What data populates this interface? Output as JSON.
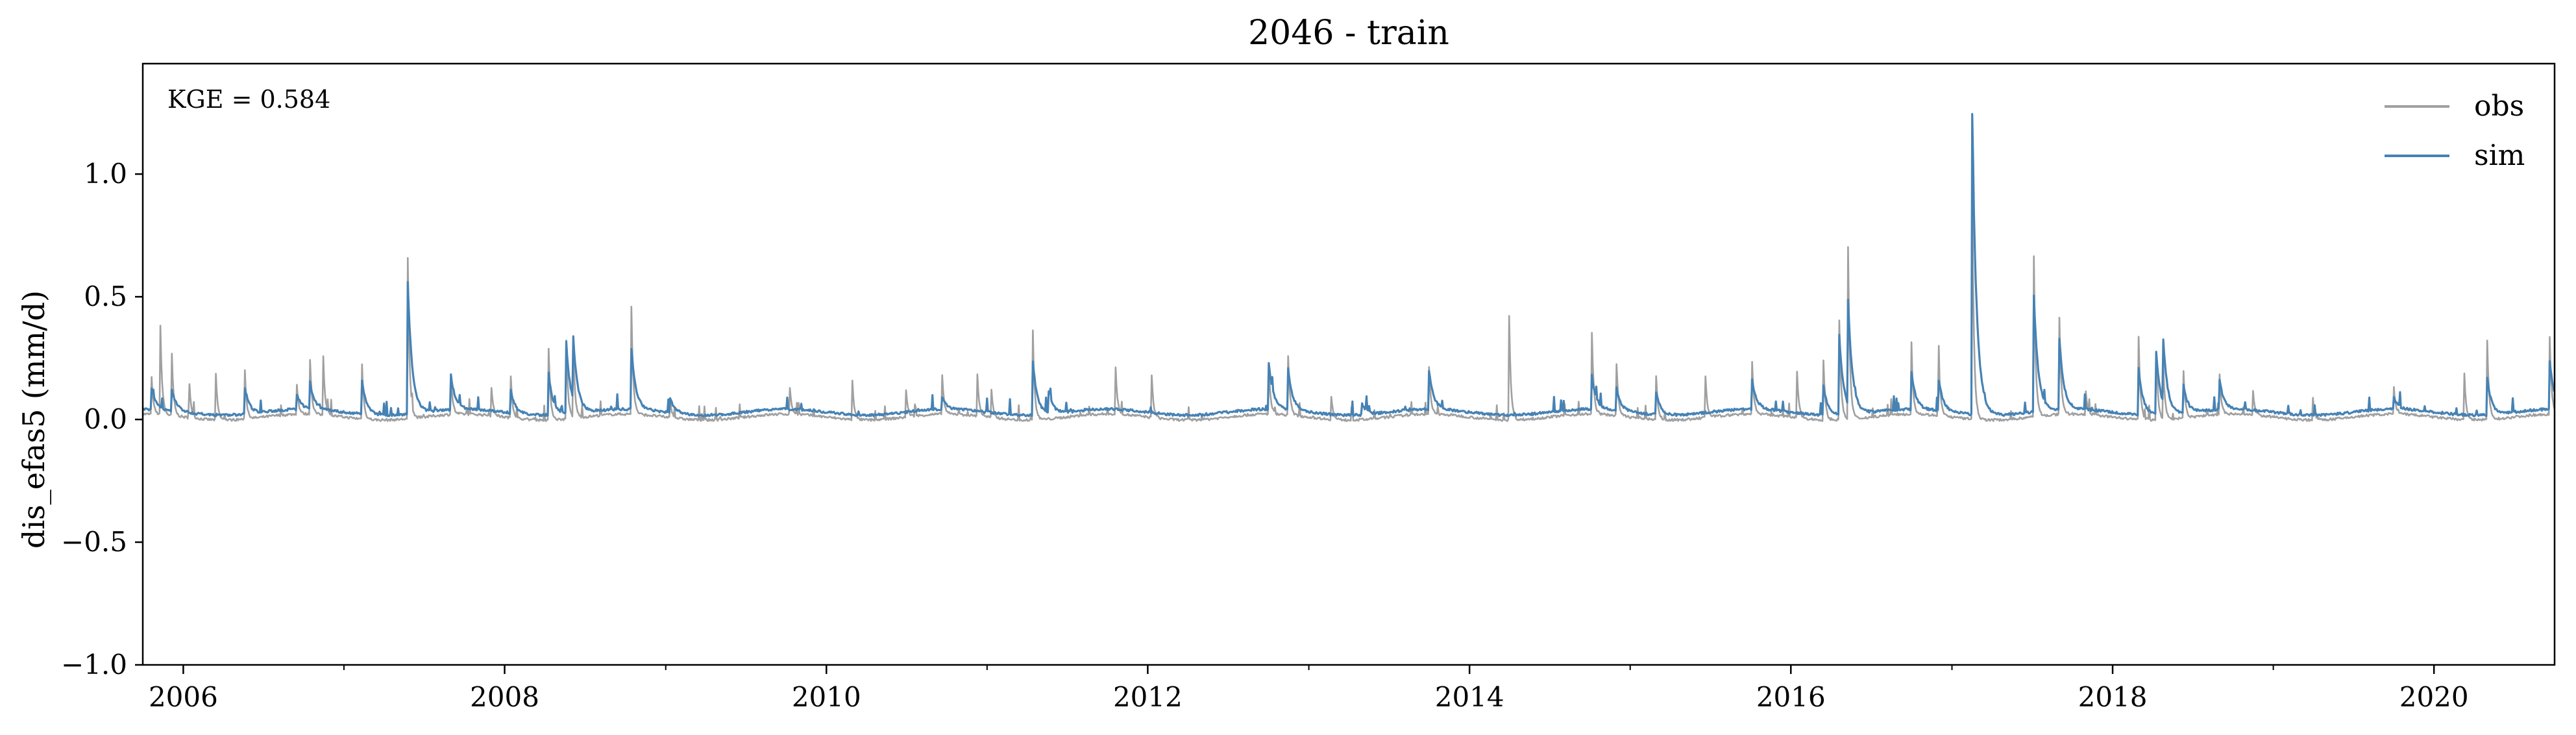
{
  "chart_data": {
    "type": "line",
    "title": "2046 - train",
    "xlabel": "",
    "ylabel": "dis_efas5 (mm/d)",
    "xlim": [
      "2005-10-01",
      "2020-10-01"
    ],
    "ylim": [
      -1.0,
      1.45
    ],
    "x_ticks": [
      "2006",
      "2008",
      "2010",
      "2012",
      "2014",
      "2016",
      "2018",
      "2020"
    ],
    "y_ticks": [
      -1.0,
      -0.5,
      0.0,
      0.5,
      1.0
    ],
    "y_tick_labels": [
      "−1.0",
      "−0.5",
      "0.0",
      "0.5",
      "1.0"
    ],
    "grid": false,
    "legend_position": "top-right",
    "annotations": [
      {
        "text": "KGE = 0.584",
        "position": "top-left"
      }
    ],
    "series": [
      {
        "name": "obs",
        "color": "#a0a0a0",
        "baseline": 0.01,
        "peaks": [
          [
            "2005-10-20",
            0.2
          ],
          [
            "2005-11-10",
            0.37
          ],
          [
            "2005-12-05",
            0.33
          ],
          [
            "2006-01-15",
            0.15
          ],
          [
            "2006-03-15",
            0.25
          ],
          [
            "2006-05-20",
            0.26
          ],
          [
            "2006-09-15",
            0.17
          ],
          [
            "2006-10-15",
            0.3
          ],
          [
            "2006-11-15",
            0.25
          ],
          [
            "2007-02-10",
            0.3
          ],
          [
            "2007-05-25",
            0.85
          ],
          [
            "2007-09-01",
            0.17
          ],
          [
            "2007-12-01",
            0.16
          ],
          [
            "2008-01-15",
            0.18
          ],
          [
            "2008-04-10",
            0.3
          ],
          [
            "2008-05-20",
            0.33
          ],
          [
            "2008-06-05",
            0.3
          ],
          [
            "2008-10-15",
            0.45
          ],
          [
            "2009-01-10",
            0.1
          ],
          [
            "2009-10-10",
            0.12
          ],
          [
            "2010-03-01",
            0.17
          ],
          [
            "2010-07-01",
            0.12
          ],
          [
            "2010-09-20",
            0.22
          ],
          [
            "2010-12-10",
            0.18
          ],
          [
            "2011-01-10",
            0.15
          ],
          [
            "2011-04-15",
            0.37
          ],
          [
            "2011-10-20",
            0.2
          ],
          [
            "2012-01-10",
            0.18
          ],
          [
            "2012-10-01",
            0.26
          ],
          [
            "2012-11-15",
            0.25
          ],
          [
            "2013-02-20",
            0.13
          ],
          [
            "2013-10-01",
            0.2
          ],
          [
            "2014-04-01",
            0.43
          ],
          [
            "2014-10-05",
            0.43
          ],
          [
            "2014-12-01",
            0.22
          ],
          [
            "2015-03-01",
            0.19
          ],
          [
            "2015-06-20",
            0.23
          ],
          [
            "2015-10-05",
            0.22
          ],
          [
            "2016-01-15",
            0.2
          ],
          [
            "2016-03-15",
            0.25
          ],
          [
            "2016-04-20",
            0.42
          ],
          [
            "2016-05-10",
            0.71
          ],
          [
            "2016-10-01",
            0.27
          ],
          [
            "2016-12-01",
            0.32
          ],
          [
            "2017-02-15",
            1.2
          ],
          [
            "2017-07-05",
            0.85
          ],
          [
            "2017-09-01",
            0.51
          ],
          [
            "2017-11-01",
            0.1
          ],
          [
            "2018-03-01",
            0.35
          ],
          [
            "2018-04-10",
            0.28
          ],
          [
            "2018-04-25",
            0.3
          ],
          [
            "2018-06-10",
            0.25
          ],
          [
            "2018-09-01",
            0.17
          ],
          [
            "2018-11-15",
            0.13
          ],
          [
            "2019-04-01",
            0.1
          ],
          [
            "2019-10-01",
            0.15
          ],
          [
            "2020-03-10",
            0.2
          ],
          [
            "2020-05-01",
            0.33
          ],
          [
            "2020-09-20",
            0.32
          ]
        ]
      },
      {
        "name": "sim",
        "color": "#4682b4",
        "baseline": 0.03,
        "peaks": [
          [
            "2005-10-20",
            0.12
          ],
          [
            "2005-12-05",
            0.13
          ],
          [
            "2006-05-20",
            0.15
          ],
          [
            "2006-09-15",
            0.1
          ],
          [
            "2006-10-15",
            0.15
          ],
          [
            "2007-02-10",
            0.18
          ],
          [
            "2007-05-25",
            0.62
          ],
          [
            "2007-09-01",
            0.17
          ],
          [
            "2008-01-15",
            0.12
          ],
          [
            "2008-04-10",
            0.2
          ],
          [
            "2008-05-20",
            0.32
          ],
          [
            "2008-06-05",
            0.28
          ],
          [
            "2008-10-15",
            0.28
          ],
          [
            "2009-01-10",
            0.1
          ],
          [
            "2010-09-20",
            0.08
          ],
          [
            "2011-04-15",
            0.25
          ],
          [
            "2011-05-20",
            0.13
          ],
          [
            "2012-10-01",
            0.24
          ],
          [
            "2012-11-15",
            0.2
          ],
          [
            "2013-05-01",
            0.08
          ],
          [
            "2013-10-01",
            0.19
          ],
          [
            "2014-10-05",
            0.18
          ],
          [
            "2014-12-01",
            0.12
          ],
          [
            "2015-03-01",
            0.12
          ],
          [
            "2015-10-05",
            0.15
          ],
          [
            "2016-03-15",
            0.15
          ],
          [
            "2016-04-20",
            0.35
          ],
          [
            "2016-05-10",
            0.45
          ],
          [
            "2016-10-01",
            0.18
          ],
          [
            "2016-12-01",
            0.17
          ],
          [
            "2017-02-15",
            1.38
          ],
          [
            "2017-07-05",
            0.55
          ],
          [
            "2017-09-01",
            0.35
          ],
          [
            "2018-03-01",
            0.22
          ],
          [
            "2018-04-10",
            0.28
          ],
          [
            "2018-04-25",
            0.31
          ],
          [
            "2018-06-10",
            0.15
          ],
          [
            "2018-09-01",
            0.15
          ],
          [
            "2019-10-01",
            0.08
          ],
          [
            "2020-05-01",
            0.18
          ],
          [
            "2020-09-20",
            0.23
          ]
        ]
      }
    ]
  }
}
